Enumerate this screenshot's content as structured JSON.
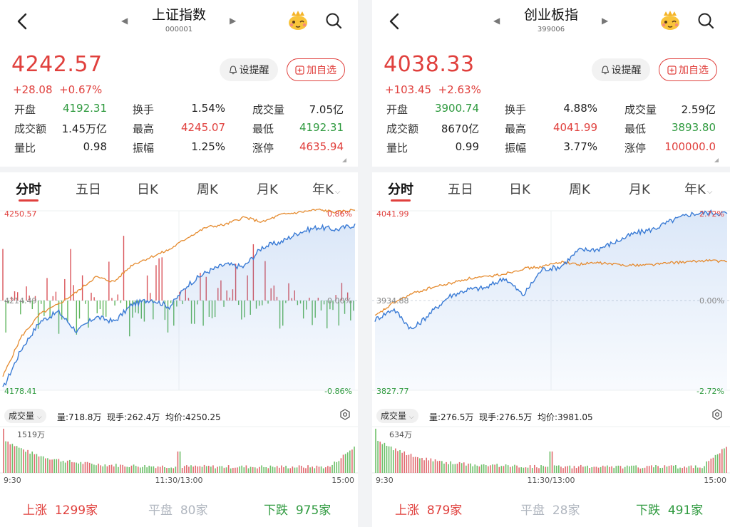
{
  "panels": [
    {
      "title": "上证指数",
      "code": "000001",
      "price": "4242.57",
      "change": "+28.08",
      "change_pct": "+0.67%",
      "remind_label": "设提醒",
      "add_label": "加自选",
      "stats": [
        {
          "label": "开盘",
          "value": "4192.31",
          "color": "grn"
        },
        {
          "label": "换手",
          "value": "1.54%",
          "color": "blk"
        },
        {
          "label": "成交量",
          "value": "7.05亿",
          "color": "blk"
        },
        {
          "label": "成交额",
          "value": "1.45万亿",
          "color": "blk"
        },
        {
          "label": "最高",
          "value": "4245.07",
          "color": "red"
        },
        {
          "label": "最低",
          "value": "4192.31",
          "color": "grn"
        },
        {
          "label": "量比",
          "value": "0.98",
          "color": "blk"
        },
        {
          "label": "振幅",
          "value": "1.25%",
          "color": "blk"
        },
        {
          "label": "涨停",
          "value": "4635.94",
          "color": "red"
        }
      ],
      "tabs": [
        "分时",
        "五日",
        "日K",
        "周K",
        "月K",
        "年K"
      ],
      "chart": {
        "top_price": "4250.57",
        "base_price": "4214.49",
        "bottom_price": "4178.41",
        "top_pct": "0.86%",
        "zero_pct": "0.00%",
        "bottom_pct": "-0.86%"
      },
      "volume": {
        "select": "成交量",
        "vol": "量:718.8万",
        "now": "现手:262.4万",
        "avg": "均价:4250.25",
        "max_label": "1519万"
      },
      "time": {
        "start": "9:30",
        "mid": "11:30/13:00",
        "end": "15:00"
      },
      "breadth": {
        "up_label": "上涨",
        "up": "1299家",
        "flat_label": "平盘",
        "flat": "80家",
        "down_label": "下跌",
        "down": "975家"
      }
    },
    {
      "title": "创业板指",
      "code": "399006",
      "price": "4038.33",
      "change": "+103.45",
      "change_pct": "+2.63%",
      "remind_label": "设提醒",
      "add_label": "加自选",
      "stats": [
        {
          "label": "开盘",
          "value": "3900.74",
          "color": "grn"
        },
        {
          "label": "换手",
          "value": "4.88%",
          "color": "blk"
        },
        {
          "label": "成交量",
          "value": "2.59亿",
          "color": "blk"
        },
        {
          "label": "成交额",
          "value": "8670亿",
          "color": "blk"
        },
        {
          "label": "最高",
          "value": "4041.99",
          "color": "red"
        },
        {
          "label": "最低",
          "value": "3893.80",
          "color": "grn"
        },
        {
          "label": "量比",
          "value": "0.99",
          "color": "blk"
        },
        {
          "label": "振幅",
          "value": "3.77%",
          "color": "blk"
        },
        {
          "label": "涨停",
          "value": "100000.0",
          "color": "red"
        }
      ],
      "tabs": [
        "分时",
        "五日",
        "日K",
        "周K",
        "月K",
        "年K"
      ],
      "chart": {
        "top_price": "4041.99",
        "base_price": "3934.88",
        "bottom_price": "3827.77",
        "top_pct": "2.72%",
        "zero_pct": "0.00%",
        "bottom_pct": "-2.72%"
      },
      "volume": {
        "select": "成交量",
        "vol": "量:276.5万",
        "now": "现手:276.5万",
        "avg": "均价:3981.05",
        "max_label": "634万"
      },
      "time": {
        "start": "9:30",
        "mid": "11:30/13:00",
        "end": "15:00"
      },
      "breadth": {
        "up_label": "上涨",
        "up": "879家",
        "flat_label": "平盘",
        "flat": "28家",
        "down_label": "下跌",
        "down": "491家"
      }
    }
  ],
  "colors": {
    "up": "#e0403d",
    "down": "#2f9a3f",
    "price_line": "#3a7bd5",
    "avg_line": "#e58a2d"
  },
  "chart_data": [
    {
      "type": "line",
      "title": "上证指数",
      "x_range": [
        "9:30",
        "15:00"
      ],
      "ylim": [
        4178.41,
        4250.57
      ],
      "series": [],
      "price_shape": [
        4179,
        4195,
        4206,
        4210,
        4202,
        4208,
        4206,
        4213,
        4215,
        4212,
        4221,
        4226,
        4229,
        4228,
        4236,
        4238,
        4242,
        4244,
        4243,
        4245
      ],
      "avg_shape": [
        4184,
        4200,
        4209,
        4213,
        4218,
        4224,
        4222,
        4229,
        4232,
        4235,
        4240,
        4244,
        4245,
        4248,
        4246,
        4249,
        4250,
        4251,
        4250,
        4251
      ]
    },
    {
      "type": "line",
      "title": "创业板指",
      "x_range": [
        "9:30",
        "15:00"
      ],
      "ylim": [
        3827.77,
        4041.99
      ],
      "series": [],
      "price_shape": [
        3912,
        3925,
        3900,
        3920,
        3940,
        3948,
        3950,
        3962,
        3941,
        3972,
        3975,
        3995,
        3996,
        4005,
        4015,
        4020,
        4030,
        4038,
        4040,
        4039
      ],
      "avg_shape": [
        3916,
        3932,
        3943,
        3950,
        3955,
        3961,
        3963,
        3967,
        3973,
        3975,
        3981,
        3978,
        3980,
        3978,
        3977,
        3978,
        3980,
        3981,
        3983,
        3981
      ]
    }
  ]
}
